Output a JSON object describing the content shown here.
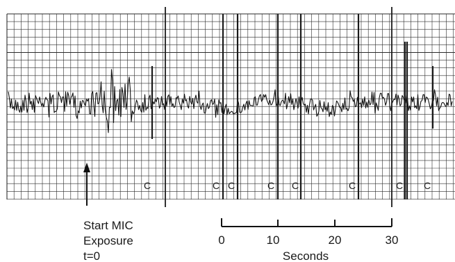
{
  "annotation": {
    "line1": "Start MIC",
    "line2": "Exposure",
    "line3": "t=0"
  },
  "scale_bar": {
    "ticks": [
      "0",
      "10",
      "20",
      "30"
    ],
    "label": "Seconds"
  },
  "event_marker": "C",
  "colors": {
    "ink": "#1a1a1a",
    "paper": "#ffffff",
    "grid": "#2a2a2a"
  }
}
